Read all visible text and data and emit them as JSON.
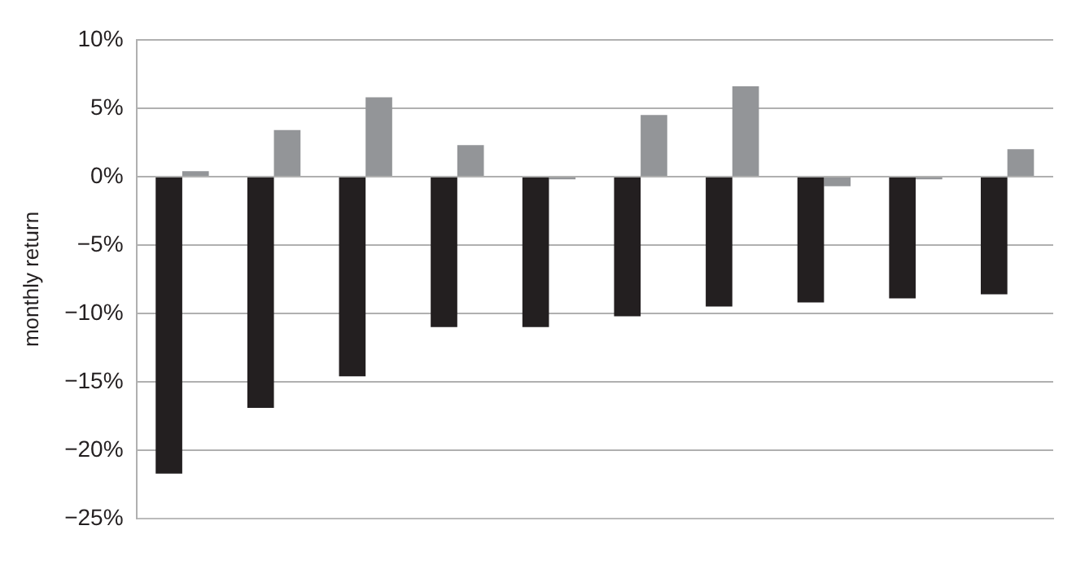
{
  "chart_data": {
    "type": "bar",
    "ylabel": "monthly return",
    "categories": [
      null,
      null,
      null,
      null,
      null,
      null,
      null,
      null,
      null,
      null
    ],
    "series": [
      {
        "color": "#231f20",
        "values": [
          -21.7,
          -16.9,
          -14.6,
          -11,
          -11,
          -10.2,
          -9.5,
          -9.2,
          -8.9,
          -8.6
        ]
      },
      {
        "color": "#939598",
        "values": [
          0.4,
          3.4,
          5.8,
          2.3,
          -0.2,
          4.5,
          6.6,
          -0.7,
          -0.2,
          2.0
        ]
      }
    ],
    "ylim": [
      -25,
      10
    ],
    "yticks": [
      {
        "value": -25,
        "label": "−25%"
      },
      {
        "value": -20,
        "label": "−20%"
      },
      {
        "value": -15,
        "label": "−15%"
      },
      {
        "value": -10,
        "label": "−10%"
      },
      {
        "value": -5,
        "label": "−5%"
      },
      {
        "value": 0,
        "label": "0%"
      },
      {
        "value": 5,
        "label": "5%"
      },
      {
        "value": 10,
        "label": "10%"
      }
    ],
    "grid": "y",
    "legend": false
  }
}
